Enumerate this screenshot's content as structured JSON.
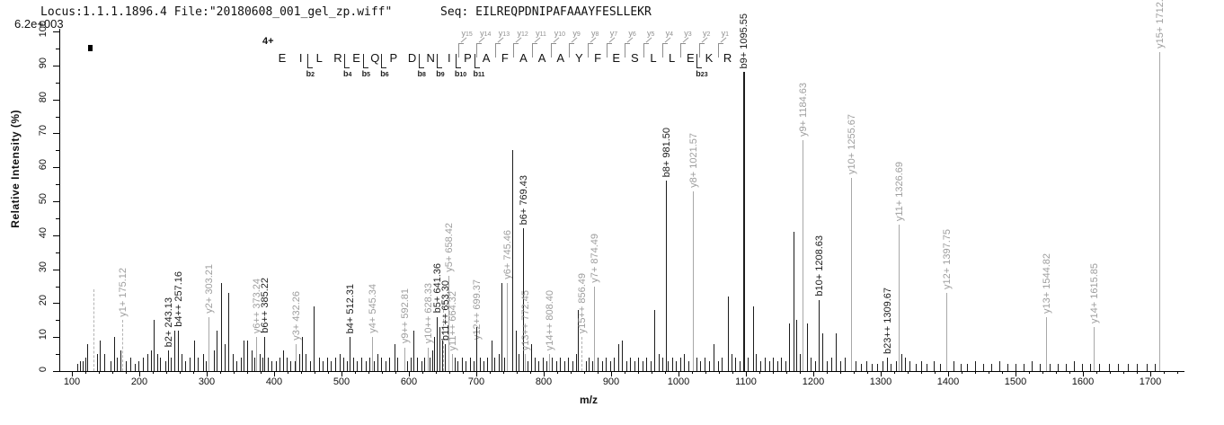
{
  "header": {
    "locus_file": "Locus:1.1.1.1896.4 File:\"20180608_001_gel_zp.wiff\"",
    "seq": "Seq: EILREQPDNIPAFAAAYFESLLEKR",
    "base_peak_intensity": "6.2e+003"
  },
  "peptide": {
    "charge_label": "4+",
    "residues": [
      "E",
      "I",
      "L",
      "R",
      "E",
      "Q",
      "P",
      "D",
      "N",
      "I",
      "P",
      "A",
      "F",
      "A",
      "A",
      "A",
      "Y",
      "F",
      "E",
      "S",
      "L",
      "L",
      "E",
      "K",
      "R"
    ],
    "y_ion_marks": [
      {
        "n": 15,
        "residue_index": 10
      },
      {
        "n": 14,
        "residue_index": 11
      },
      {
        "n": 13,
        "residue_index": 12
      },
      {
        "n": 12,
        "residue_index": 13
      },
      {
        "n": 11,
        "residue_index": 14
      },
      {
        "n": 10,
        "residue_index": 15
      },
      {
        "n": 9,
        "residue_index": 16
      },
      {
        "n": 8,
        "residue_index": 17
      },
      {
        "n": 7,
        "residue_index": 18
      },
      {
        "n": 6,
        "residue_index": 19
      },
      {
        "n": 5,
        "residue_index": 20
      },
      {
        "n": 4,
        "residue_index": 21
      },
      {
        "n": 3,
        "residue_index": 22
      },
      {
        "n": 2,
        "residue_index": 23
      },
      {
        "n": 1,
        "residue_index": 24
      }
    ],
    "b_ion_marks": [
      {
        "n": 2,
        "after_index": 1
      },
      {
        "n": 4,
        "after_index": 3
      },
      {
        "n": 5,
        "after_index": 4
      },
      {
        "n": 6,
        "after_index": 5
      },
      {
        "n": 8,
        "after_index": 7
      },
      {
        "n": 9,
        "after_index": 8
      },
      {
        "n": 10,
        "after_index": 9
      },
      {
        "n": 11,
        "after_index": 10
      },
      {
        "n": 23,
        "after_index": 22
      }
    ]
  },
  "axes": {
    "x_label": "m/z",
    "y_label": "Relative  Intensity (%)",
    "x_ticks_labeled": [
      100,
      200,
      300,
      400,
      500,
      600,
      700,
      800,
      900,
      1000,
      1100,
      1200,
      1300,
      1400,
      1500,
      1600,
      1700
    ],
    "x_minor_step": 20,
    "x_minor_max": 1740,
    "y_ticks_labeled": [
      0,
      10,
      20,
      30,
      40,
      50,
      60,
      70,
      80,
      90,
      100
    ],
    "y_minor_step": 5
  },
  "colors": {
    "b_ion": "#1c1c1c",
    "y_ion": "#a8a8a8",
    "unassigned": "#1c1c1c",
    "dashed": "#b3b3b3",
    "axis": "#000000"
  },
  "chart_data": {
    "type": "ms2_peptide_fragmentation_spectrum",
    "xlabel": "m/z",
    "ylabel": "Relative  Intensity (%)",
    "x_range": [
      100,
      1750
    ],
    "y_range": [
      0,
      100
    ],
    "base_peak_intensity_counts": "6.2e+003",
    "precursor_charge": "4+",
    "peptide_sequence": "EILREQPDNIPAFAAAYFESLLEKR",
    "peak_format": [
      "mz",
      "relative_intensity_pct",
      "series(b|y|empty)",
      "label",
      "dashed"
    ],
    "peaks": [
      [
        108,
        2
      ],
      [
        112,
        3
      ],
      [
        116,
        3
      ],
      [
        120,
        4
      ],
      [
        123,
        8
      ],
      [
        132,
        24,
        "y",
        "",
        1
      ],
      [
        137,
        5
      ],
      [
        141,
        9
      ],
      [
        148,
        5
      ],
      [
        157,
        3
      ],
      [
        163,
        10
      ],
      [
        167,
        4
      ],
      [
        172,
        6
      ],
      [
        175.12,
        15,
        "y",
        "y1+ 175.12",
        1
      ],
      [
        180,
        3
      ],
      [
        186,
        4
      ],
      [
        193,
        2
      ],
      [
        199,
        3
      ],
      [
        205,
        4
      ],
      [
        212,
        5
      ],
      [
        217,
        6
      ],
      [
        221,
        15
      ],
      [
        226,
        5
      ],
      [
        231,
        4
      ],
      [
        239,
        3
      ],
      [
        243.13,
        6,
        "b",
        "b2+ 243.13"
      ],
      [
        246,
        4
      ],
      [
        252,
        12
      ],
      [
        257.16,
        12,
        "b",
        "b4++ 257.16"
      ],
      [
        262,
        5
      ],
      [
        268,
        3
      ],
      [
        274,
        4
      ],
      [
        281,
        9
      ],
      [
        287,
        4
      ],
      [
        294,
        5
      ],
      [
        299,
        3
      ],
      [
        303.21,
        16,
        "y",
        "y2+ 303.21"
      ],
      [
        310,
        6
      ],
      [
        315,
        12
      ],
      [
        321,
        26
      ],
      [
        326,
        8
      ],
      [
        332,
        23
      ],
      [
        338,
        5
      ],
      [
        344,
        3
      ],
      [
        350,
        4
      ],
      [
        355,
        9
      ],
      [
        360,
        9
      ],
      [
        366,
        6
      ],
      [
        370,
        4
      ],
      [
        373.24,
        10,
        "y",
        "y6++ 373.24"
      ],
      [
        378,
        5
      ],
      [
        382,
        4
      ],
      [
        385.22,
        10,
        "b",
        "b6++ 385.22"
      ],
      [
        391,
        4
      ],
      [
        396,
        3
      ],
      [
        402,
        3
      ],
      [
        408,
        4
      ],
      [
        413,
        6
      ],
      [
        419,
        4
      ],
      [
        424,
        3
      ],
      [
        430,
        3
      ],
      [
        432.26,
        8,
        "y",
        "y3+ 432.26"
      ],
      [
        437,
        5
      ],
      [
        441,
        10
      ],
      [
        447,
        5
      ],
      [
        453,
        3
      ],
      [
        459,
        19
      ],
      [
        466,
        4
      ],
      [
        472,
        3
      ],
      [
        478,
        4
      ],
      [
        484,
        3
      ],
      [
        490,
        4
      ],
      [
        497,
        5
      ],
      [
        503,
        4
      ],
      [
        508,
        3
      ],
      [
        512.31,
        10,
        "b",
        "b4+ 512.31"
      ],
      [
        517,
        4
      ],
      [
        523,
        3
      ],
      [
        529,
        4
      ],
      [
        536,
        3
      ],
      [
        541,
        4
      ],
      [
        545.34,
        10,
        "y",
        "y4+ 545.34"
      ],
      [
        548,
        3
      ],
      [
        553,
        5
      ],
      [
        558,
        4
      ],
      [
        565,
        3
      ],
      [
        571,
        4
      ],
      [
        578,
        8
      ],
      [
        583,
        4
      ],
      [
        592.81,
        7,
        "y",
        "y9++ 592.81"
      ],
      [
        597,
        3
      ],
      [
        603,
        4
      ],
      [
        607,
        12
      ],
      [
        612,
        4
      ],
      [
        618,
        3
      ],
      [
        623,
        4
      ],
      [
        628.33,
        7,
        "y",
        "y10++ 628.33"
      ],
      [
        630,
        4
      ],
      [
        634,
        6
      ],
      [
        637,
        10
      ],
      [
        641.36,
        16,
        "b",
        "b5+ 641.36"
      ],
      [
        645,
        13
      ],
      [
        649,
        9
      ],
      [
        651,
        22,
        "y",
        "",
        1
      ],
      [
        653.3,
        8,
        "b",
        "b11++ 653.30"
      ],
      [
        658.42,
        28,
        "y",
        "y5+ 658.42"
      ],
      [
        664.32,
        5,
        "y",
        "y11++ 664.32"
      ],
      [
        668,
        4
      ],
      [
        672,
        3
      ],
      [
        678,
        4
      ],
      [
        684,
        3
      ],
      [
        690,
        4
      ],
      [
        696,
        3
      ],
      [
        699.37,
        8,
        "y",
        "y12++ 699.37"
      ],
      [
        700,
        13
      ],
      [
        705,
        4
      ],
      [
        711,
        3
      ],
      [
        716,
        4
      ],
      [
        722,
        9
      ],
      [
        727,
        4
      ],
      [
        733,
        5
      ],
      [
        737,
        26
      ],
      [
        741,
        4
      ],
      [
        745.46,
        26,
        "y",
        "y6+ 745.46"
      ],
      [
        753,
        65
      ],
      [
        758,
        12
      ],
      [
        762,
        5
      ],
      [
        769.43,
        42,
        "b",
        "b6+ 769.43"
      ],
      [
        772.45,
        5,
        "y",
        "y13++ 772.45"
      ],
      [
        776,
        3
      ],
      [
        781,
        8
      ],
      [
        786,
        4
      ],
      [
        792,
        3
      ],
      [
        798,
        4
      ],
      [
        804,
        3
      ],
      [
        808.4,
        5,
        "y",
        "y14++ 808.40"
      ],
      [
        812,
        4
      ],
      [
        818,
        3
      ],
      [
        824,
        4
      ],
      [
        830,
        3
      ],
      [
        836,
        4
      ],
      [
        842,
        3
      ],
      [
        848,
        5
      ],
      [
        851,
        18
      ],
      [
        856.49,
        10,
        "y",
        "y15++ 856.49",
        1
      ],
      [
        862,
        3
      ],
      [
        866,
        4
      ],
      [
        872,
        3
      ],
      [
        874.49,
        25,
        "y",
        "y7+ 874.49"
      ],
      [
        880,
        4
      ],
      [
        886,
        3
      ],
      [
        892,
        4
      ],
      [
        898,
        3
      ],
      [
        904,
        4
      ],
      [
        910,
        8
      ],
      [
        916,
        9
      ],
      [
        922,
        3
      ],
      [
        928,
        4
      ],
      [
        934,
        3
      ],
      [
        940,
        4
      ],
      [
        946,
        3
      ],
      [
        952,
        4
      ],
      [
        958,
        3
      ],
      [
        964,
        18
      ],
      [
        970,
        5
      ],
      [
        976,
        4
      ],
      [
        981.5,
        56,
        "b",
        "b8+ 981.50"
      ],
      [
        984,
        3
      ],
      [
        990,
        4
      ],
      [
        996,
        3
      ],
      [
        1002,
        4
      ],
      [
        1008,
        5
      ],
      [
        1014,
        3
      ],
      [
        1021.57,
        53,
        "y",
        "y8+ 1021.57"
      ],
      [
        1026,
        4
      ],
      [
        1032,
        3
      ],
      [
        1038,
        4
      ],
      [
        1045,
        3
      ],
      [
        1052,
        8
      ],
      [
        1058,
        3
      ],
      [
        1064,
        4
      ],
      [
        1073,
        22
      ],
      [
        1078,
        5
      ],
      [
        1084,
        4
      ],
      [
        1090,
        3
      ],
      [
        1095.55,
        88,
        "b",
        "b9+ 1095.55"
      ],
      [
        1103,
        4
      ],
      [
        1110,
        19
      ],
      [
        1114,
        5
      ],
      [
        1121,
        3
      ],
      [
        1128,
        4
      ],
      [
        1134,
        3
      ],
      [
        1140,
        4
      ],
      [
        1146,
        3
      ],
      [
        1152,
        4
      ],
      [
        1158,
        3
      ],
      [
        1164,
        14
      ],
      [
        1170,
        41
      ],
      [
        1175,
        15
      ],
      [
        1180,
        5
      ],
      [
        1184.63,
        68,
        "y",
        "y9+ 1184.63"
      ],
      [
        1190,
        14
      ],
      [
        1196,
        4
      ],
      [
        1202,
        3
      ],
      [
        1208.63,
        21,
        "b",
        "b10+ 1208.63"
      ],
      [
        1213,
        11
      ],
      [
        1220,
        3
      ],
      [
        1226,
        4
      ],
      [
        1233,
        11
      ],
      [
        1240,
        3
      ],
      [
        1247,
        4
      ],
      [
        1255.67,
        57,
        "y",
        "y10+ 1255.67"
      ],
      [
        1262,
        3
      ],
      [
        1270,
        2
      ],
      [
        1278,
        3
      ],
      [
        1286,
        2
      ],
      [
        1294,
        2
      ],
      [
        1302,
        3
      ],
      [
        1309.67,
        4,
        "b",
        "b23++ 1309.67"
      ],
      [
        1314,
        2
      ],
      [
        1322,
        3
      ],
      [
        1326.69,
        43,
        "y",
        "y11+ 1326.69"
      ],
      [
        1330,
        5
      ],
      [
        1336,
        4
      ],
      [
        1342,
        3
      ],
      [
        1352,
        2
      ],
      [
        1360,
        3
      ],
      [
        1368,
        2
      ],
      [
        1378,
        3
      ],
      [
        1388,
        2
      ],
      [
        1397.75,
        23,
        "y",
        "y12+ 1397.75"
      ],
      [
        1408,
        3
      ],
      [
        1418,
        2
      ],
      [
        1428,
        2
      ],
      [
        1440,
        3
      ],
      [
        1452,
        2
      ],
      [
        1464,
        2
      ],
      [
        1476,
        3
      ],
      [
        1488,
        2
      ],
      [
        1500,
        2
      ],
      [
        1512,
        2
      ],
      [
        1524,
        3
      ],
      [
        1536,
        2
      ],
      [
        1544.82,
        16,
        "y",
        "y13+ 1544.82"
      ],
      [
        1550,
        2
      ],
      [
        1562,
        2
      ],
      [
        1574,
        2
      ],
      [
        1586,
        3
      ],
      [
        1598,
        2
      ],
      [
        1610,
        2
      ],
      [
        1615.85,
        13,
        "y",
        "y14+ 1615.85"
      ],
      [
        1624,
        2
      ],
      [
        1638,
        2
      ],
      [
        1652,
        2
      ],
      [
        1666,
        2
      ],
      [
        1680,
        2
      ],
      [
        1694,
        2
      ],
      [
        1706,
        2
      ],
      [
        1712.9,
        94,
        "y",
        "y15+ 1712.9"
      ]
    ]
  }
}
